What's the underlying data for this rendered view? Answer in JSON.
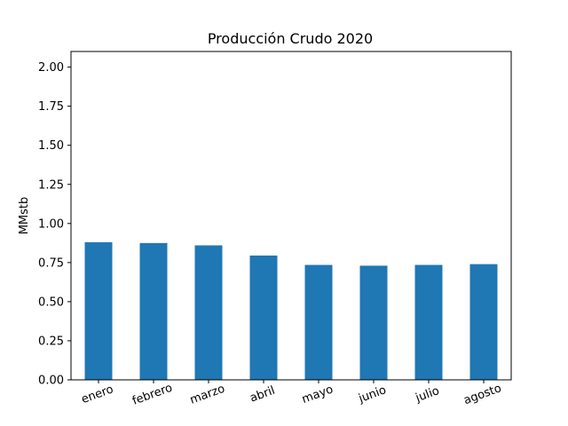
{
  "chart_data": {
    "type": "bar",
    "title": "Producción Crudo 2020",
    "xlabel": "",
    "ylabel": "MMstb",
    "categories": [
      "enero",
      "febrero",
      "marzo",
      "abril",
      "mayo",
      "junio",
      "julio",
      "agosto"
    ],
    "values": [
      0.88,
      0.875,
      0.86,
      0.795,
      0.735,
      0.73,
      0.735,
      0.74
    ],
    "ylim": [
      0,
      2.1
    ],
    "yticks": [
      "0.00",
      "0.25",
      "0.50",
      "0.75",
      "1.00",
      "1.25",
      "1.50",
      "1.75",
      "2.00"
    ],
    "bar_color": "#1f77b4",
    "grid": false,
    "legend": "none"
  }
}
